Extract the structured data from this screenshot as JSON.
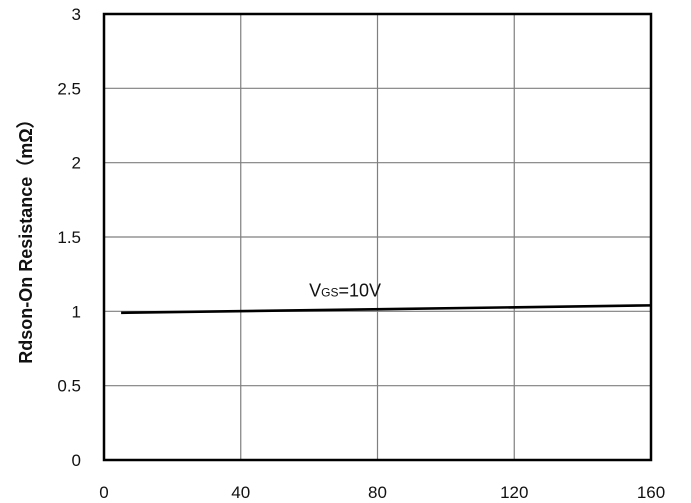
{
  "chart_data": {
    "type": "line",
    "title": "",
    "xlabel": "",
    "ylabel": "Rdson-On Resistance（mΩ）",
    "xlim": [
      0,
      160
    ],
    "ylim": [
      0,
      3
    ],
    "x_ticks": [
      "0",
      "40",
      "80",
      "120",
      "160"
    ],
    "y_ticks": [
      "0",
      "0.5",
      "1",
      "1.5",
      "2",
      "2.5",
      "3"
    ],
    "grid": true,
    "series": [
      {
        "x": [
          5,
          160
        ],
        "y": [
          0.99,
          1.04
        ]
      }
    ],
    "annotations": [
      {
        "main": "V",
        "sub": "GS",
        "rest": "=10V",
        "x": 60,
        "y": 1.1
      }
    ],
    "colors": {
      "line": "#000000",
      "grid": "#7f7f7f",
      "axis": "#000000"
    }
  }
}
